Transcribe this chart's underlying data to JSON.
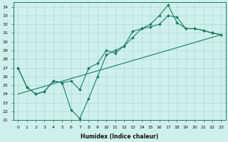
{
  "xlabel": "Humidex (Indice chaleur)",
  "xlim": [
    -0.5,
    23.5
  ],
  "ylim": [
    21,
    34.5
  ],
  "yticks": [
    21,
    22,
    23,
    24,
    25,
    26,
    27,
    28,
    29,
    30,
    31,
    32,
    33,
    34
  ],
  "xticks": [
    0,
    1,
    2,
    3,
    4,
    5,
    6,
    7,
    8,
    9,
    10,
    11,
    12,
    13,
    14,
    15,
    16,
    17,
    18,
    19,
    20,
    21,
    22,
    23
  ],
  "bg_color": "#cff0ea",
  "line_color": "#1a7a6e",
  "grid_color": "#aaddd6",
  "line1_x": [
    0,
    1,
    2,
    3,
    4,
    5,
    6,
    7,
    8,
    9,
    10,
    11,
    12,
    13,
    14,
    15,
    16,
    17,
    18,
    19,
    20,
    21,
    22,
    23
  ],
  "line1_y": [
    27.0,
    24.8,
    24.0,
    24.3,
    25.5,
    25.3,
    22.2,
    21.2,
    23.5,
    26.0,
    28.5,
    29.0,
    29.5,
    31.2,
    31.5,
    32.0,
    33.0,
    34.2,
    32.2,
    31.5,
    31.5,
    31.3,
    31.0,
    30.8
  ],
  "line2_x": [
    0,
    1,
    2,
    3,
    4,
    5,
    6,
    7,
    8,
    9,
    10,
    11,
    12,
    13,
    14,
    15,
    16,
    17,
    18,
    19,
    20,
    21,
    22,
    23
  ],
  "line2_y": [
    27.0,
    24.8,
    24.0,
    24.3,
    25.5,
    25.3,
    25.5,
    24.5,
    27.0,
    27.5,
    29.0,
    28.7,
    29.5,
    30.5,
    31.5,
    31.7,
    32.0,
    33.0,
    32.8,
    31.5,
    31.5,
    31.3,
    31.0,
    30.8
  ],
  "line3_x": [
    0,
    23
  ],
  "line3_y": [
    24.0,
    30.8
  ]
}
